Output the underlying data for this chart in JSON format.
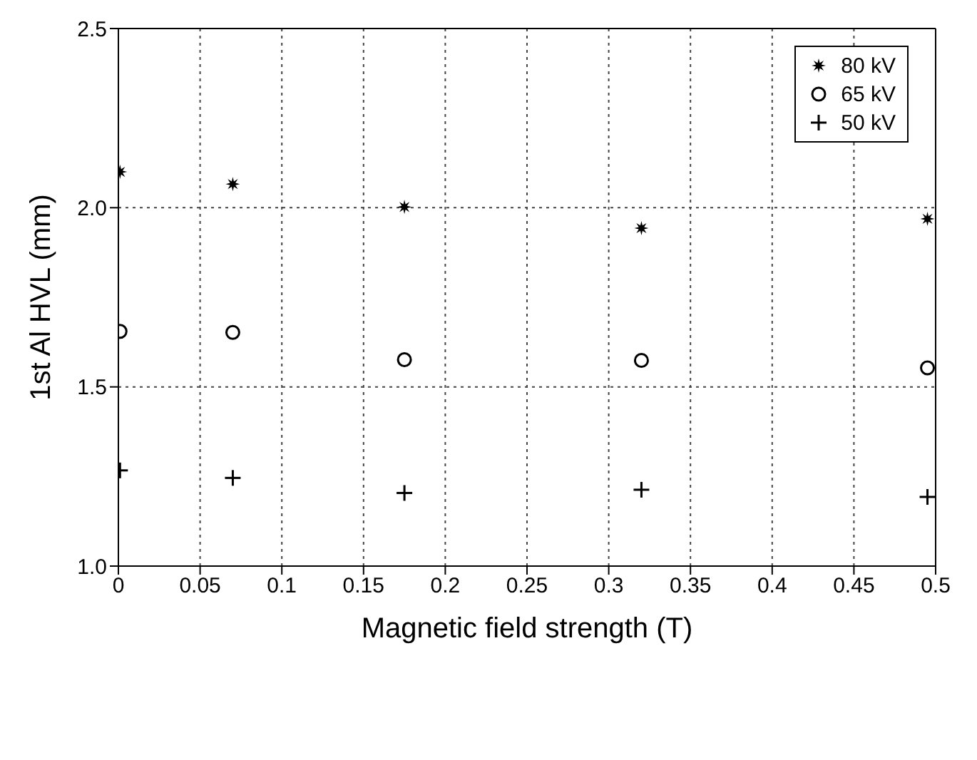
{
  "chart_data": {
    "type": "scatter",
    "xlabel": "Magnetic field strength (T)",
    "ylabel": "1st Al HVL (mm)",
    "x": [
      0.001,
      0.07,
      0.175,
      0.32,
      0.495
    ],
    "series": [
      {
        "name": "80 kV",
        "color": "#000000",
        "marker": "star",
        "values": [
          2.1,
          2.066,
          2.002,
          1.943,
          1.969
        ]
      },
      {
        "name": "65 kV",
        "color": "#000000",
        "marker": "circle",
        "values": [
          1.655,
          1.652,
          1.576,
          1.574,
          1.553
        ]
      },
      {
        "name": "50 kV",
        "color": "#000000",
        "marker": "cross",
        "values": [
          1.267,
          1.246,
          1.204,
          1.213,
          1.193
        ]
      }
    ],
    "xlim": [
      0,
      0.5
    ],
    "xticks": [
      0,
      0.05,
      0.1,
      0.15,
      0.2,
      0.25,
      0.3,
      0.35,
      0.4,
      0.45,
      0.5
    ],
    "ylim": [
      1,
      2.5
    ],
    "yticks": [
      {
        "value": 1,
        "label": "1.0"
      },
      {
        "value": 1.5,
        "label": "1.5"
      },
      {
        "value": 2,
        "label": "2.0"
      },
      {
        "value": 2.5,
        "label": "2.5"
      }
    ],
    "grid": true,
    "legend": "top right"
  }
}
